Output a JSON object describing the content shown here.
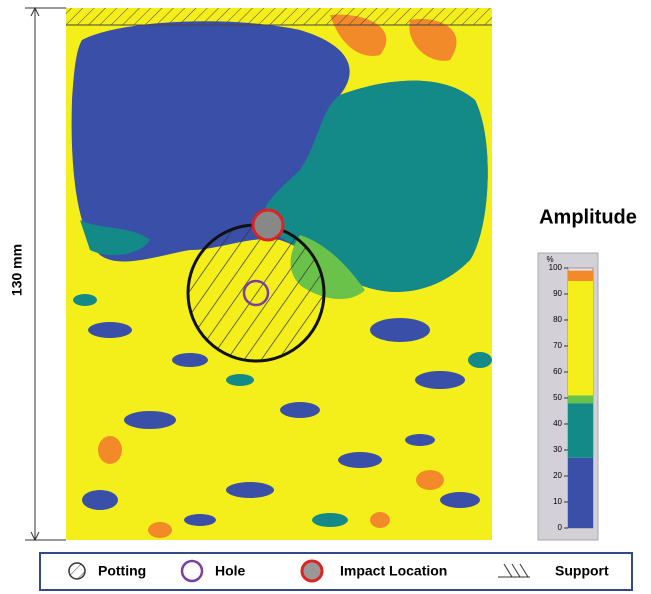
{
  "dimension_label": "130 mm",
  "colorbar": {
    "title": "Amplitude",
    "unit": "%",
    "range": [
      0,
      100
    ],
    "ticks": [
      0,
      10,
      20,
      30,
      40,
      50,
      60,
      70,
      80,
      90,
      100
    ],
    "segments": [
      {
        "from": 0,
        "to": 27,
        "color": "#3a4fa8"
      },
      {
        "from": 27,
        "to": 48,
        "color": "#138a88"
      },
      {
        "from": 48,
        "to": 51,
        "color": "#6ac24a"
      },
      {
        "from": 51,
        "to": 95,
        "color": "#f4ef1a"
      },
      {
        "from": 95,
        "to": 99,
        "color": "#f28a2a"
      }
    ]
  },
  "legend": [
    {
      "label": "Potting"
    },
    {
      "label": "Hole"
    },
    {
      "label": "Impact Location"
    },
    {
      "label": "Support"
    }
  ]
}
